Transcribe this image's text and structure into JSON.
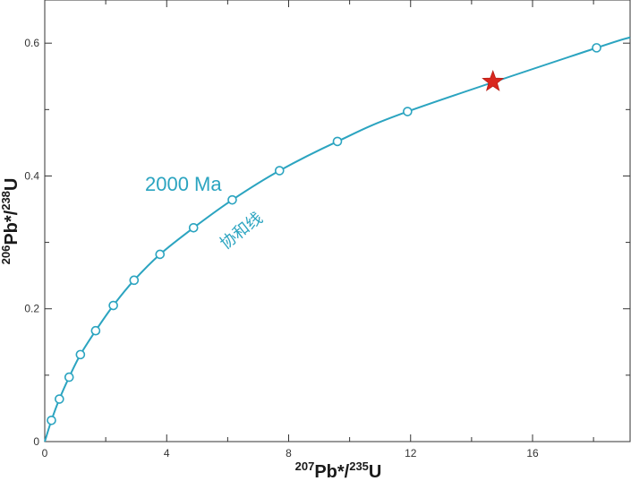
{
  "chart_data": {
    "type": "line",
    "xlabel": {
      "base1": "Pb*/",
      "sup1": "207",
      "sup2": "235",
      "base2": "U"
    },
    "ylabel": {
      "base1": "Pb*/",
      "sup1": "206",
      "sup2": "238",
      "base2": "U"
    },
    "xlim": [
      0,
      19.2
    ],
    "ylim": [
      0,
      0.665
    ],
    "xticks": [
      0,
      4,
      8,
      12,
      16
    ],
    "yticks": [
      0,
      0.2,
      0.4,
      0.6
    ],
    "xtick_labels": [
      "0",
      "4",
      "8",
      "12",
      "16"
    ],
    "ytick_labels": [
      "0",
      "0.2",
      "0.4",
      "0.6"
    ],
    "grid": false,
    "series": [
      {
        "kind": "concordia-curve",
        "color": "#2ba4c0",
        "points": [
          {
            "x": 0.22,
            "y": 0.032
          },
          {
            "x": 0.48,
            "y": 0.064
          },
          {
            "x": 0.8,
            "y": 0.097
          },
          {
            "x": 1.17,
            "y": 0.131
          },
          {
            "x": 1.67,
            "y": 0.167
          },
          {
            "x": 2.25,
            "y": 0.205
          },
          {
            "x": 2.93,
            "y": 0.243
          },
          {
            "x": 3.78,
            "y": 0.282
          },
          {
            "x": 4.88,
            "y": 0.322
          },
          {
            "x": 6.15,
            "y": 0.364
          },
          {
            "x": 7.7,
            "y": 0.408
          },
          {
            "x": 9.6,
            "y": 0.452
          },
          {
            "x": 11.9,
            "y": 0.497
          },
          {
            "x": 18.1,
            "y": 0.593
          }
        ]
      }
    ],
    "star_marker": {
      "x": 14.7,
      "y": 0.542,
      "color": "#d9271e"
    },
    "annotations": [
      {
        "text": "2000 Ma",
        "color": "#2ba4c0"
      },
      {
        "text": "协和线",
        "color": "#2ba4c0"
      }
    ]
  }
}
